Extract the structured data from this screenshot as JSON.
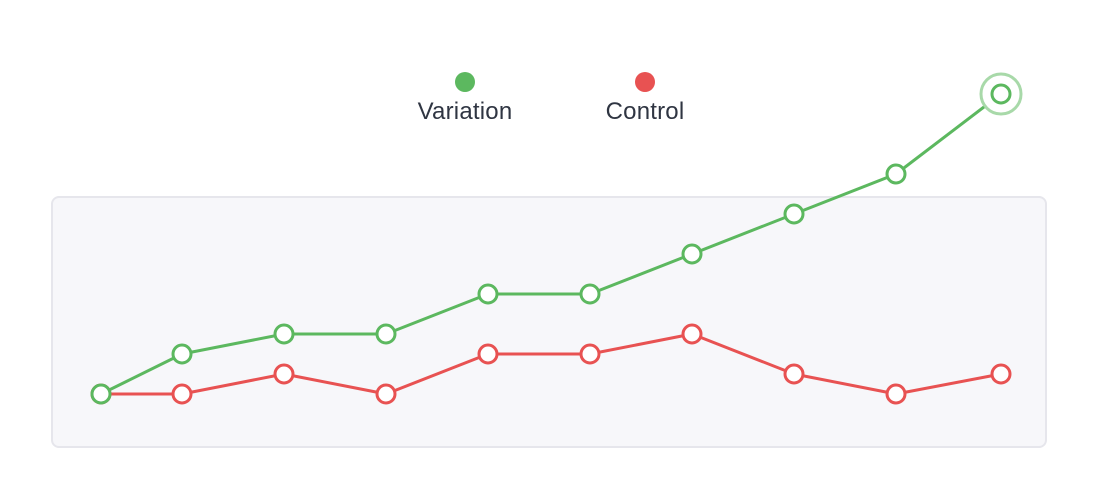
{
  "legend": {
    "variation_label": "Variation",
    "control_label": "Control"
  },
  "colors": {
    "variation": "#5cb85f",
    "control": "#e85252",
    "variation_halo": "#a8d9a9",
    "marker_fill": "#ffffff",
    "plot_background": "#f7f7fa",
    "plot_border": "#e6e6ec"
  },
  "chart_data": {
    "type": "line",
    "title": "",
    "xlabel": "",
    "ylabel": "",
    "x": [
      1,
      2,
      3,
      4,
      5,
      6,
      7,
      8,
      9,
      10
    ],
    "ylim": [
      0,
      16
    ],
    "grid": false,
    "legend_position": "top-center",
    "highlight_last_point": "Variation",
    "series": [
      {
        "name": "Variation",
        "values": [
          0,
          2,
          3,
          3,
          5,
          5,
          7,
          9,
          11,
          15
        ]
      },
      {
        "name": "Control",
        "values": [
          0,
          0,
          1,
          0,
          2,
          2,
          3,
          1,
          0,
          1
        ]
      }
    ]
  }
}
